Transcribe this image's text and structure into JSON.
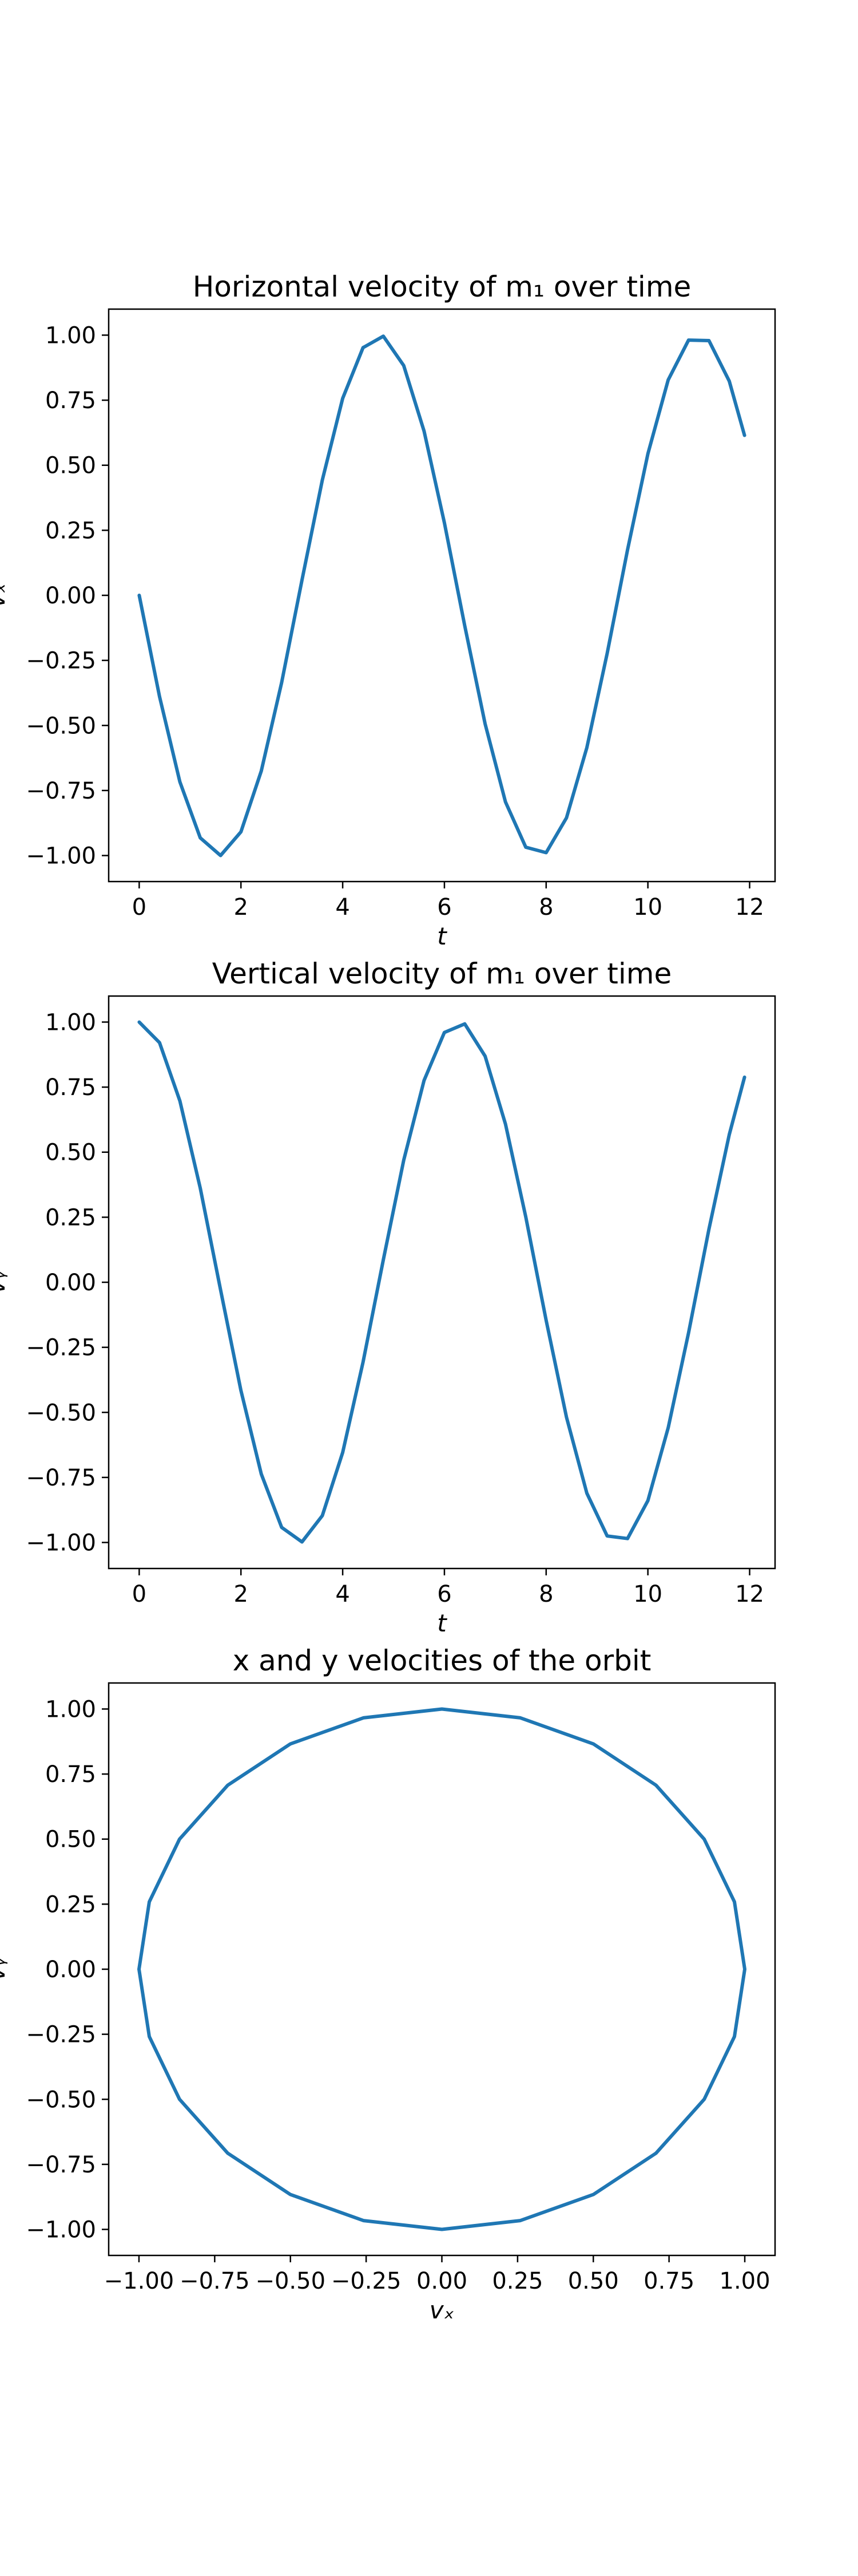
{
  "chart_data": [
    {
      "type": "line",
      "title": "Horizontal velocity of m₁ over time",
      "xlabel": "t",
      "ylabel": "vₓ",
      "xlim": [
        -0.6,
        12.5
      ],
      "ylim": [
        -1.1,
        1.1
      ],
      "xticks": [
        0,
        2,
        4,
        6,
        8,
        10,
        12
      ],
      "xtick_labels": [
        "0",
        "2",
        "4",
        "6",
        "8",
        "10",
        "12"
      ],
      "yticks": [
        -1.0,
        -0.75,
        -0.5,
        -0.25,
        0.0,
        0.25,
        0.5,
        0.75,
        1.0
      ],
      "ytick_labels": [
        "−1.00",
        "−0.75",
        "−0.50",
        "−0.25",
        "0.00",
        "0.25",
        "0.50",
        "0.75",
        "1.00"
      ],
      "grid": false,
      "series": [
        {
          "color": "#1f77b4",
          "x": [
            0,
            0.4,
            0.8,
            1.2,
            1.6,
            2.0,
            2.4,
            2.8,
            3.2,
            3.6,
            4.0,
            4.4,
            4.8,
            5.2,
            5.6,
            6.0,
            6.4,
            6.8,
            7.2,
            7.6,
            8.0,
            8.4,
            8.8,
            9.2,
            9.6,
            10.0,
            10.4,
            10.8,
            11.2,
            11.6,
            11.9
          ],
          "y": [
            0.0,
            -0.389,
            -0.717,
            -0.932,
            -1.0,
            -0.909,
            -0.675,
            -0.335,
            0.058,
            0.443,
            0.757,
            0.952,
            0.996,
            0.883,
            0.631,
            0.279,
            -0.117,
            -0.494,
            -0.794,
            -0.968,
            -0.989,
            -0.855,
            -0.585,
            -0.223,
            0.175,
            0.544,
            0.828,
            0.981,
            0.979,
            0.823,
            0.615
          ]
        }
      ]
    },
    {
      "type": "line",
      "title": "Vertical velocity of m₁ over time",
      "xlabel": "t",
      "ylabel": "vᵧ",
      "xlim": [
        -0.6,
        12.5
      ],
      "ylim": [
        -1.1,
        1.1
      ],
      "xticks": [
        0,
        2,
        4,
        6,
        8,
        10,
        12
      ],
      "xtick_labels": [
        "0",
        "2",
        "4",
        "6",
        "8",
        "10",
        "12"
      ],
      "yticks": [
        -1.0,
        -0.75,
        -0.5,
        -0.25,
        0.0,
        0.25,
        0.5,
        0.75,
        1.0
      ],
      "ytick_labels": [
        "−1.00",
        "−0.75",
        "−0.50",
        "−0.25",
        "0.00",
        "0.25",
        "0.50",
        "0.75",
        "1.00"
      ],
      "grid": false,
      "series": [
        {
          "color": "#1f77b4",
          "x": [
            0,
            0.4,
            0.8,
            1.2,
            1.6,
            2.0,
            2.4,
            2.8,
            3.2,
            3.6,
            4.0,
            4.4,
            4.8,
            5.2,
            5.6,
            6.0,
            6.4,
            6.8,
            7.2,
            7.6,
            8.0,
            8.4,
            8.8,
            9.2,
            9.6,
            10.0,
            10.4,
            10.8,
            11.2,
            11.6,
            11.9
          ],
          "y": [
            1.0,
            0.921,
            0.697,
            0.362,
            -0.029,
            -0.416,
            -0.737,
            -0.942,
            -0.998,
            -0.897,
            -0.654,
            -0.307,
            0.087,
            0.469,
            0.776,
            0.96,
            0.993,
            0.869,
            0.608,
            0.251,
            -0.146,
            -0.519,
            -0.811,
            -0.975,
            -0.985,
            -0.839,
            -0.559,
            -0.194,
            0.204,
            0.568,
            0.788
          ]
        }
      ]
    },
    {
      "type": "line",
      "title": "x and y velocities of the orbit",
      "xlabel": "vₓ",
      "ylabel": "vᵧ",
      "xlim": [
        -1.1,
        1.1
      ],
      "ylim": [
        -1.1,
        1.1
      ],
      "xticks": [
        -1.0,
        -0.75,
        -0.5,
        -0.25,
        0.0,
        0.25,
        0.5,
        0.75,
        1.0
      ],
      "xtick_labels": [
        "−1.00",
        "−0.75",
        "−0.50",
        "−0.25",
        "0.00",
        "0.25",
        "0.50",
        "0.75",
        "1.00"
      ],
      "yticks": [
        -1.0,
        -0.75,
        -0.5,
        -0.25,
        0.0,
        0.25,
        0.5,
        0.75,
        1.0
      ],
      "ytick_labels": [
        "−1.00",
        "−0.75",
        "−0.50",
        "−0.25",
        "0.00",
        "0.25",
        "0.50",
        "0.75",
        "1.00"
      ],
      "grid": false,
      "series": [
        {
          "color": "#1f77b4",
          "x": [
            0.0,
            -0.259,
            -0.5,
            -0.707,
            -0.866,
            -0.966,
            -1.0,
            -0.966,
            -0.866,
            -0.707,
            -0.5,
            -0.259,
            0.0,
            0.259,
            0.5,
            0.707,
            0.866,
            0.966,
            1.0,
            0.966,
            0.866,
            0.707,
            0.5,
            0.259,
            0.0
          ],
          "y": [
            1.0,
            0.966,
            0.866,
            0.707,
            0.5,
            0.259,
            0.0,
            -0.259,
            -0.5,
            -0.707,
            -0.866,
            -0.966,
            -1.0,
            -0.966,
            -0.866,
            -0.707,
            -0.5,
            -0.259,
            0.0,
            0.259,
            0.5,
            0.707,
            0.866,
            0.966,
            1.0
          ]
        }
      ]
    }
  ]
}
